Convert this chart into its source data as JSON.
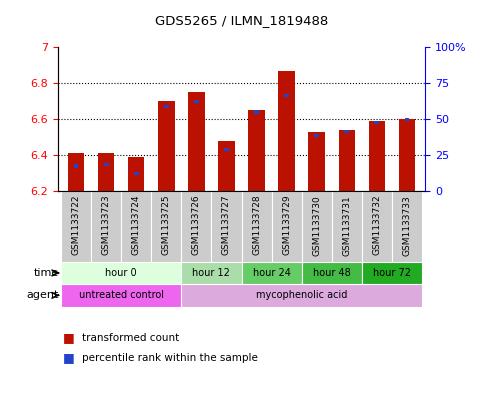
{
  "title": "GDS5265 / ILMN_1819488",
  "samples": [
    "GSM1133722",
    "GSM1133723",
    "GSM1133724",
    "GSM1133725",
    "GSM1133726",
    "GSM1133727",
    "GSM1133728",
    "GSM1133729",
    "GSM1133730",
    "GSM1133731",
    "GSM1133732",
    "GSM1133733"
  ],
  "red_values": [
    6.41,
    6.41,
    6.39,
    6.7,
    6.75,
    6.48,
    6.65,
    6.87,
    6.53,
    6.54,
    6.59,
    6.6
  ],
  "blue_values": [
    6.34,
    6.35,
    6.3,
    6.67,
    6.7,
    6.43,
    6.64,
    6.73,
    6.51,
    6.53,
    6.58,
    6.6
  ],
  "ymin": 6.2,
  "ymax": 7.0,
  "y_left_ticks": [
    6.2,
    6.4,
    6.6,
    6.8,
    7
  ],
  "y_left_labels": [
    "6.2",
    "6.4",
    "6.6",
    "6.8",
    "7"
  ],
  "y_right_ticks": [
    0,
    25,
    50,
    75,
    100
  ],
  "y_right_labels": [
    "0",
    "25",
    "50",
    "75",
    "100%"
  ],
  "bar_color": "#bb1100",
  "blue_color": "#2244cc",
  "bg_color": "#ffffff",
  "plot_bg": "#ffffff",
  "time_groups": [
    {
      "label": "hour 0",
      "start": 0,
      "end": 4,
      "color": "#ddffdd"
    },
    {
      "label": "hour 12",
      "start": 4,
      "end": 6,
      "color": "#aaddaa"
    },
    {
      "label": "hour 24",
      "start": 6,
      "end": 8,
      "color": "#66cc66"
    },
    {
      "label": "hour 48",
      "start": 8,
      "end": 10,
      "color": "#44bb44"
    },
    {
      "label": "hour 72",
      "start": 10,
      "end": 12,
      "color": "#22aa22"
    }
  ],
  "agent_groups": [
    {
      "label": "untreated control",
      "start": 0,
      "end": 4,
      "color": "#ee66ee"
    },
    {
      "label": "mycophenolic acid",
      "start": 4,
      "end": 12,
      "color": "#ddaadd"
    }
  ],
  "legend_red": "transformed count",
  "legend_blue": "percentile rank within the sample"
}
